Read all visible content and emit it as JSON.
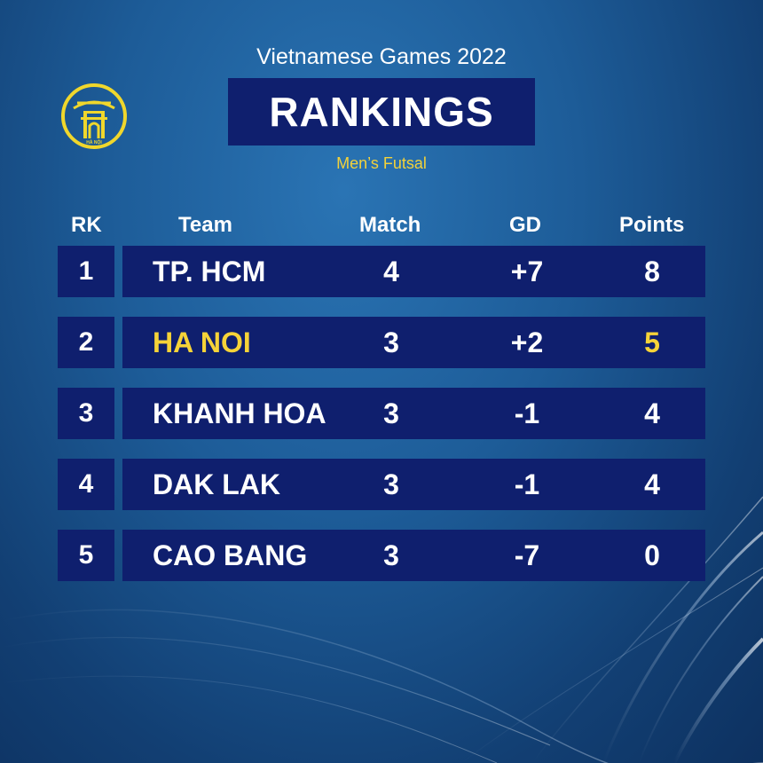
{
  "header": {
    "event": "Vietnamese Games 2022",
    "title": "RANKINGS",
    "category": "Men’s Futsal",
    "logo": {
      "icon": "hanoi-gate-logo",
      "text": "HÀ NỘI"
    }
  },
  "colors": {
    "background": "#1d5c98",
    "cell": "#0f1f6e",
    "highlight": "#f6d338",
    "text": "#ffffff"
  },
  "table": {
    "columns": {
      "rk": "RK",
      "team": "Team",
      "match": "Match",
      "gd": "GD",
      "points": "Points"
    },
    "rows": [
      {
        "rk": "1",
        "team": "TP. HCM",
        "match": "4",
        "gd": "+7",
        "points": "8"
      },
      {
        "rk": "2",
        "team": "HA NOI",
        "match": "3",
        "gd": "+2",
        "points": "5"
      },
      {
        "rk": "3",
        "team": "KHANH HOA",
        "match": "3",
        "gd": "-1",
        "points": "4"
      },
      {
        "rk": "4",
        "team": "DAK LAK",
        "match": "3",
        "gd": "-1",
        "points": "4"
      },
      {
        "rk": "5",
        "team": "CAO BANG",
        "match": "3",
        "gd": "-7",
        "points": "0"
      }
    ]
  }
}
